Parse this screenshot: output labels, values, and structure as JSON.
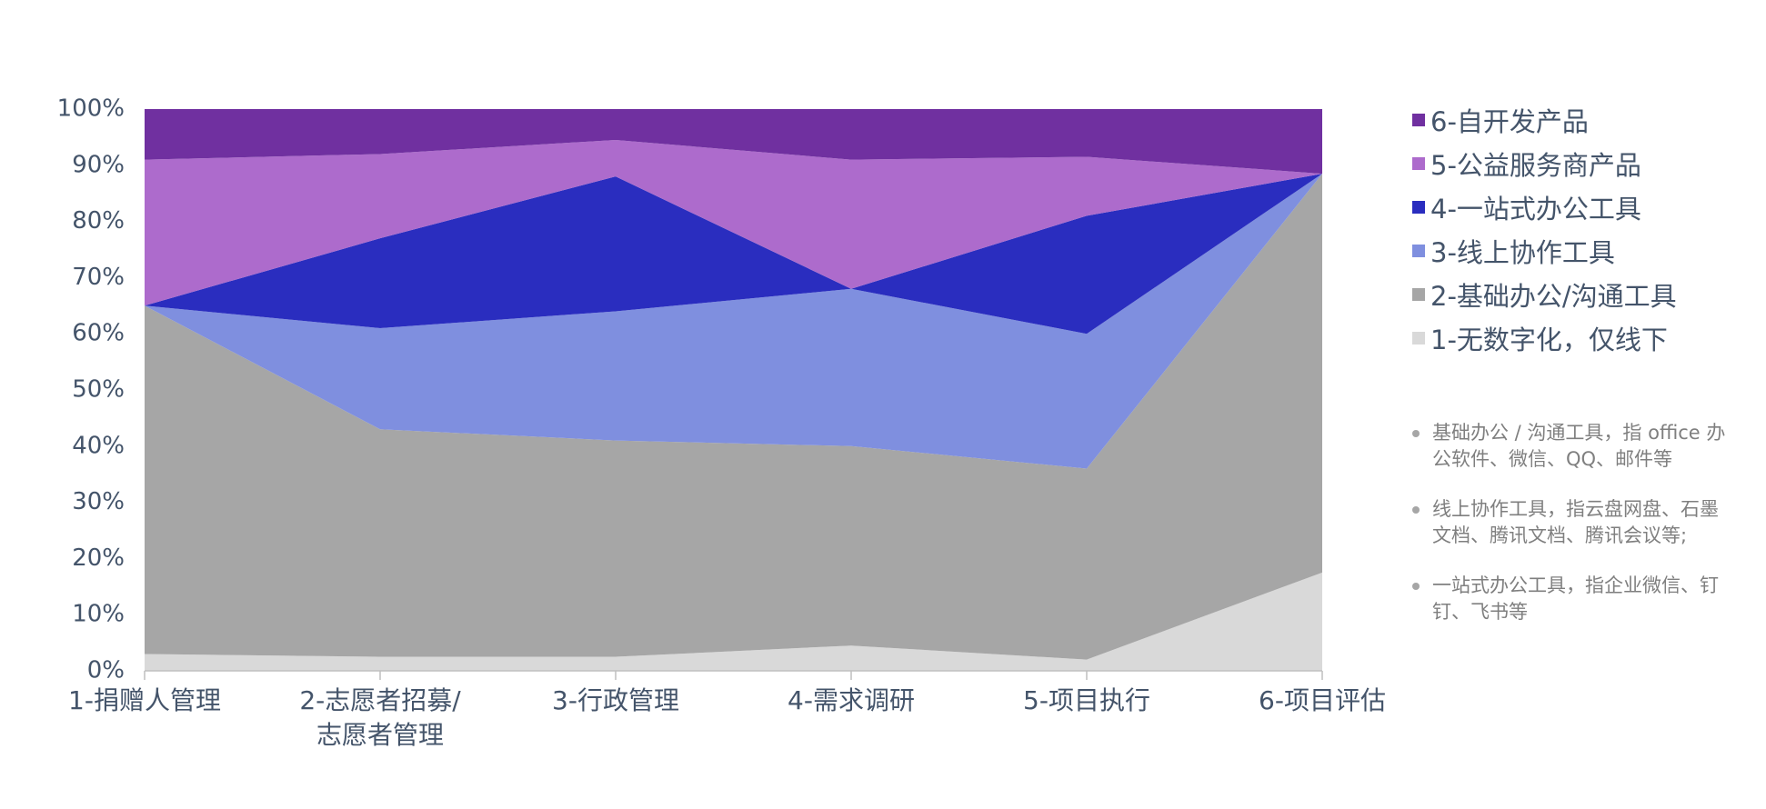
{
  "chart_data": {
    "type": "stacked_area_100",
    "categories": [
      "1-捐赠人管理",
      "2-志愿者招募/志愿者管理",
      "3-行政管理",
      "4-需求调研",
      "5-项目执行",
      "6-项目评估"
    ],
    "series": [
      {
        "name": "1-无数字化，仅线下",
        "color": "#d9d9d9",
        "values": [
          3,
          2.5,
          2.5,
          4.5,
          2,
          17.5
        ]
      },
      {
        "name": "2-基础办公/沟通工具",
        "color": "#a6a6a6",
        "values": [
          62,
          40.5,
          38.5,
          35.5,
          34,
          71
        ]
      },
      {
        "name": "3-线上协作工具",
        "color": "#7f8fdf",
        "values": [
          0,
          18,
          23,
          28,
          24,
          0
        ]
      },
      {
        "name": "4-一站式办公工具",
        "color": "#2a2dbf",
        "values": [
          0,
          16,
          24,
          0,
          21,
          0
        ]
      },
      {
        "name": "5-公益服务商产品",
        "color": "#ad6bcc",
        "values": [
          26,
          15,
          6.5,
          23,
          10.5,
          0
        ]
      },
      {
        "name": "6-自开发产品",
        "color": "#7030a0",
        "values": [
          9,
          8,
          5.5,
          9,
          8.5,
          11.5
        ]
      }
    ],
    "ylim": [
      0,
      100
    ],
    "yticks": [
      {
        "value": 0,
        "label": "0%"
      },
      {
        "value": 10,
        "label": "10%"
      },
      {
        "value": 20,
        "label": "20%"
      },
      {
        "value": 30,
        "label": "30%"
      },
      {
        "value": 40,
        "label": "40%"
      },
      {
        "value": 50,
        "label": "50%"
      },
      {
        "value": 60,
        "label": "60%"
      },
      {
        "value": 70,
        "label": "70%"
      },
      {
        "value": 80,
        "label": "80%"
      },
      {
        "value": 90,
        "label": "90%"
      },
      {
        "value": 100,
        "label": "100%"
      }
    ],
    "notes": [
      "基础办公 / 沟通工具，指 office 办公软件、微信、QQ、邮件等",
      "线上协作工具，指云盘网盘、石墨文档、腾讯文档、腾讯会议等;",
      "一站式办公工具，指企业微信、钉钉、飞书等"
    ]
  }
}
